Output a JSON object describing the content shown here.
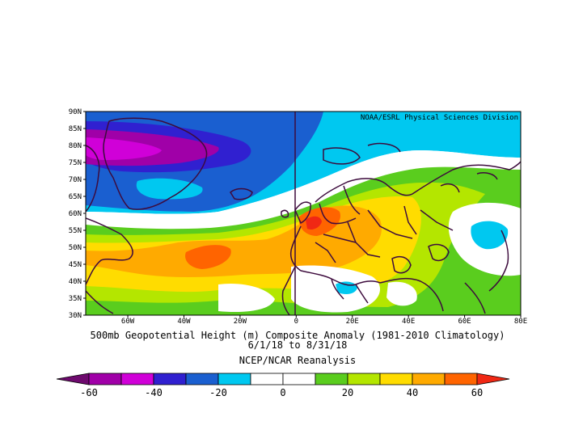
{
  "credit": "NOAA/ESRL Physical Sciences Division",
  "map": {
    "lat_labels": [
      "90N",
      "85N",
      "80N",
      "75N",
      "70N",
      "65N",
      "60N",
      "55N",
      "50N",
      "45N",
      "40N",
      "35N",
      "30N"
    ],
    "lon_labels": [
      "60W",
      "40W",
      "20W",
      "0",
      "20E",
      "40E",
      "60E",
      "80E"
    ],
    "lon_range": [
      -75,
      80
    ],
    "lat_range": [
      30,
      90
    ]
  },
  "caption": {
    "line1": "500mb Geopotential Height (m) Composite Anomaly (1981-2010 Climatology)",
    "line2": "6/1/18  to 8/31/18",
    "line3": "NCEP/NCAR Reanalysis"
  },
  "colorbar": {
    "tick_labels": [
      "-60",
      "-40",
      "-20",
      "0",
      "20",
      "40",
      "60"
    ],
    "colors": [
      "#6e0a6e",
      "#a000a8",
      "#d000d8",
      "#3020d0",
      "#1a5fd0",
      "#00c8f0",
      "#ffffff",
      "#ffffff",
      "#5acd1e",
      "#b4e600",
      "#ffdc00",
      "#ffaa00",
      "#ff6400",
      "#f02814"
    ]
  }
}
